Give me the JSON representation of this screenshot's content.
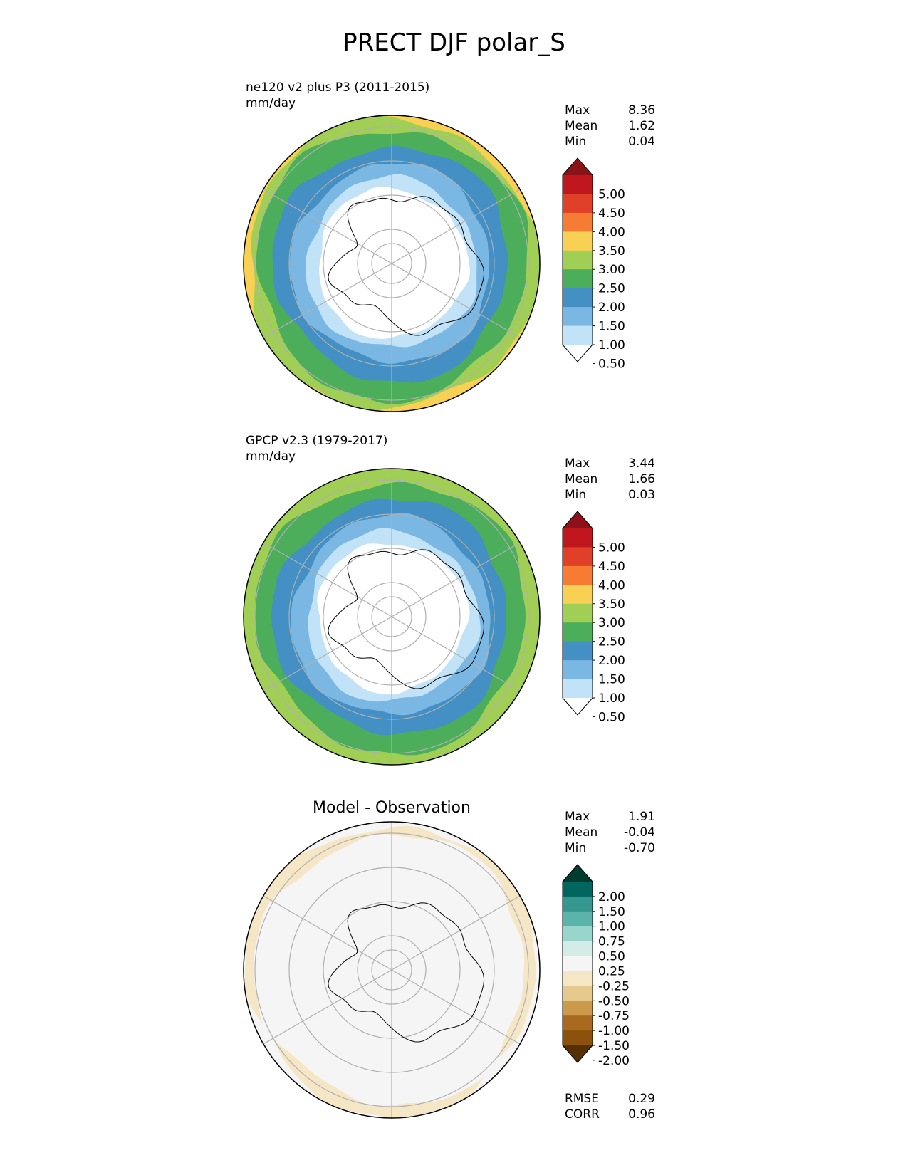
{
  "title": "PRECT DJF polar_S",
  "panels": [
    {
      "label_line1": "ne120 v2 plus P3 (2011-2015)",
      "label_line2": "mm/day",
      "stats": {
        "max_label": "Max",
        "max": "8.36",
        "mean_label": "Mean",
        "mean": "1.62",
        "min_label": "Min",
        "min": "0.04"
      }
    },
    {
      "label_line1": "GPCP v2.3 (1979-2017)",
      "label_line2": "mm/day",
      "stats": {
        "max_label": "Max",
        "max": "3.44",
        "mean_label": "Mean",
        "mean": "1.66",
        "min_label": "Min",
        "min": "0.03"
      }
    },
    {
      "title": "Model - Observation",
      "stats": {
        "max_label": "Max",
        "max": "1.91",
        "mean_label": "Mean",
        "mean": "-0.04",
        "min_label": "Min",
        "min": "-0.70"
      },
      "metrics": {
        "rmse_label": "RMSE",
        "rmse": "0.29",
        "corr_label": "CORR",
        "corr": "0.96"
      }
    }
  ],
  "colorbar_abs": {
    "ticks": [
      "5.00",
      "4.50",
      "4.00",
      "3.50",
      "3.00",
      "2.50",
      "2.00",
      "1.50",
      "1.00",
      "0.50"
    ],
    "colors_top_to_bottom": [
      "#8b1219",
      "#c0171f",
      "#e04028",
      "#f67b33",
      "#f8d154",
      "#a1cf55",
      "#4cad5b",
      "#448fc4",
      "#7ab8e3",
      "#c2e3f7",
      "#ffffff"
    ]
  },
  "colorbar_diff": {
    "ticks": [
      "2.00",
      "1.50",
      "1.00",
      "0.75",
      "0.50",
      "0.25",
      "-0.25",
      "-0.50",
      "-0.75",
      "-1.00",
      "-1.50",
      "-2.00"
    ],
    "colors_top_to_bottom": [
      "#003c30",
      "#01665e",
      "#35978f",
      "#5ab4ac",
      "#98d5cb",
      "#d3ece8",
      "#f5f5f5",
      "#f5e6c5",
      "#e6c98d",
      "#cd9a4c",
      "#a96a1f",
      "#8c510a",
      "#543005"
    ]
  },
  "maps": [
    {
      "rings": [
        "#f8d154",
        "#a1cf55",
        "#4cad5b",
        "#448fc4",
        "#7ab8e3",
        "#c2e3f7",
        "#ffffff"
      ]
    },
    {
      "rings": [
        "#a1cf55",
        "#a1cf55",
        "#4cad5b",
        "#448fc4",
        "#7ab8e3",
        "#c2e3f7",
        "#ffffff"
      ]
    },
    {
      "rings": [
        "#f5f5f5",
        "#f5e6c5",
        "#f5f5f5",
        "#f5f5f5",
        "#f5f5f5",
        "#f5f5f5",
        "#f5f5f5"
      ]
    }
  ]
}
